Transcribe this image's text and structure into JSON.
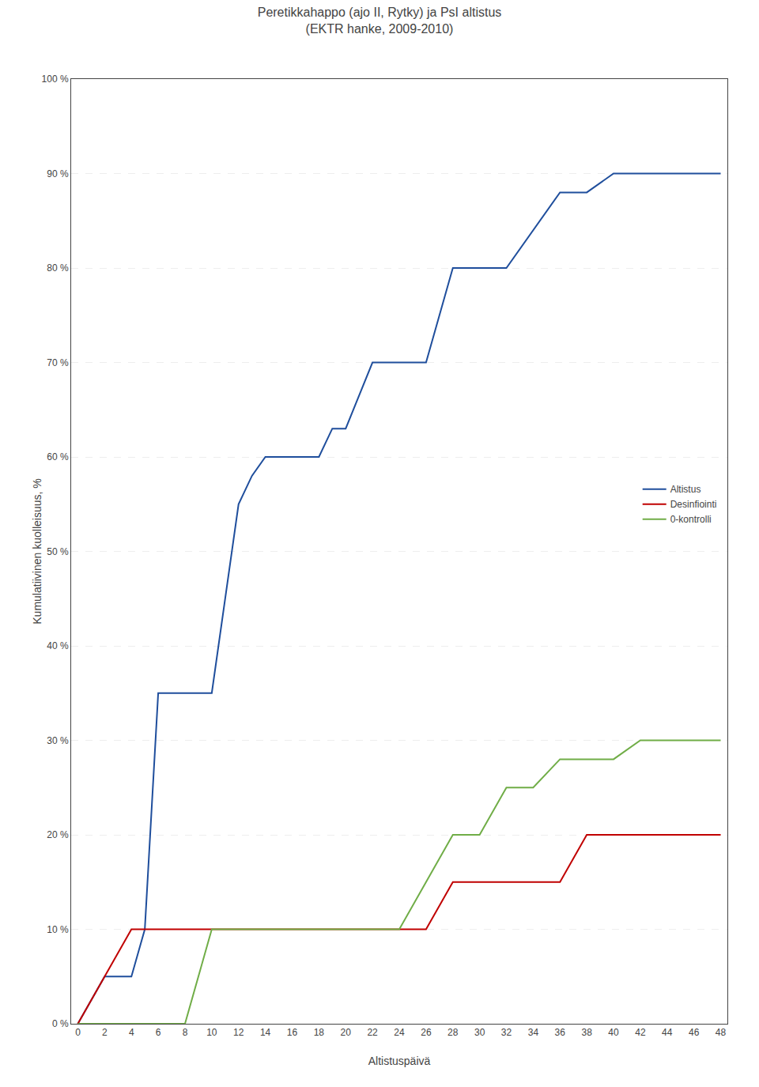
{
  "chart_data": {
    "type": "line",
    "title": "Peretikkahappo (ajo II, Rytky) ja PsI altistus\n(EKTR hanke, 2009-2010)",
    "x_label": "Altistuspäivä",
    "y_label": "Kumulatiivinen kuolleisuus, %",
    "series": [
      {
        "name": "Altistus",
        "color": "#1F4E9C",
        "x": [
          0,
          2,
          4,
          5,
          6,
          8,
          10,
          12,
          13,
          14,
          15,
          16,
          18,
          19,
          20,
          22,
          24,
          26,
          28,
          30,
          32,
          36,
          38,
          40,
          42,
          44,
          46,
          48
        ],
        "values": [
          0,
          5,
          5,
          10,
          35,
          35,
          35,
          55,
          58,
          60,
          60,
          60,
          60,
          63,
          63,
          70,
          70,
          70,
          80,
          80,
          80,
          88,
          88,
          90,
          90,
          90,
          90,
          90
        ]
      },
      {
        "name": "Desinfiointi",
        "color": "#C00000",
        "x": [
          0,
          2,
          4,
          6,
          8,
          10,
          12,
          14,
          16,
          18,
          20,
          22,
          24,
          26,
          28,
          30,
          32,
          34,
          36,
          38,
          40,
          42,
          44,
          46,
          48
        ],
        "values": [
          0,
          5,
          10,
          10,
          10,
          10,
          10,
          10,
          10,
          10,
          10,
          10,
          10,
          10,
          15,
          15,
          15,
          15,
          15,
          20,
          20,
          20,
          20,
          20,
          20
        ]
      },
      {
        "name": "0-kontrolli",
        "color": "#70AD47",
        "x": [
          0,
          2,
          4,
          6,
          8,
          10,
          12,
          14,
          16,
          18,
          20,
          22,
          24,
          26,
          28,
          30,
          32,
          34,
          36,
          38,
          40,
          42,
          44,
          46,
          48
        ],
        "values": [
          0,
          0,
          0,
          0,
          0,
          10,
          10,
          10,
          10,
          10,
          10,
          10,
          10,
          15,
          20,
          20,
          25,
          25,
          28,
          28,
          28,
          30,
          30,
          30,
          30
        ]
      }
    ],
    "xlim": [
      -0.5,
      48.5
    ],
    "xticks": [
      0,
      2,
      4,
      6,
      8,
      10,
      12,
      14,
      16,
      18,
      20,
      22,
      24,
      26,
      28,
      30,
      32,
      34,
      36,
      38,
      40,
      42,
      44,
      46,
      48
    ],
    "ylim": [
      0,
      100
    ],
    "yticks": [
      {
        "value": 0,
        "label": "0 %"
      },
      {
        "value": 10,
        "label": "10 %"
      },
      {
        "value": 20,
        "label": "20 %"
      },
      {
        "value": 30,
        "label": "30 %"
      },
      {
        "value": 40,
        "label": "40 %"
      },
      {
        "value": 50,
        "label": "50 %"
      },
      {
        "value": 60,
        "label": "60 %"
      },
      {
        "value": 70,
        "label": "70 %"
      },
      {
        "value": 80,
        "label": "80 %"
      },
      {
        "value": 90,
        "label": "90 %"
      },
      {
        "value": 100,
        "label": "100 %"
      }
    ],
    "grid": "y",
    "legend": "right"
  }
}
